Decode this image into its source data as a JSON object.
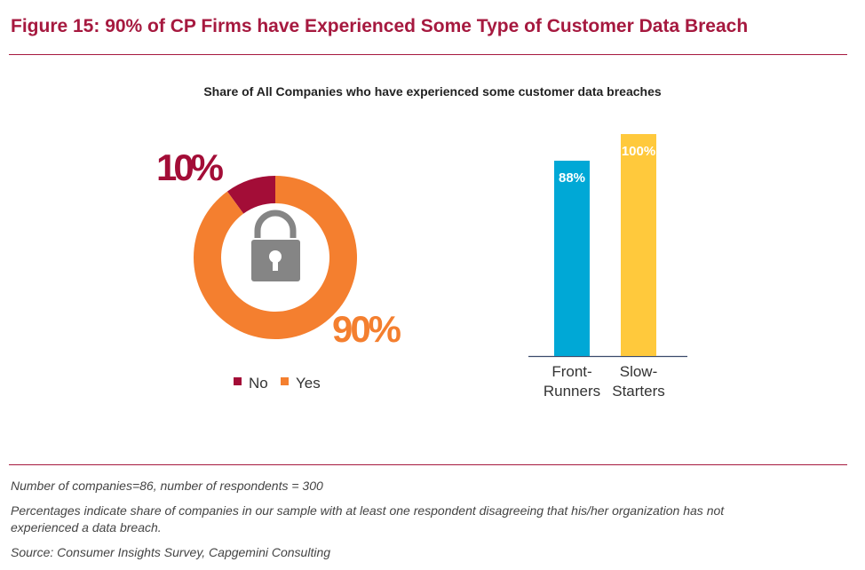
{
  "title": "Figure 15: 90% of CP Firms have Experienced Some Type of Customer Data Breach",
  "chart_data": [
    {
      "type": "pie",
      "subtitle": "Share of All Companies who have experienced some customer data breaches",
      "categories": [
        "No",
        "Yes"
      ],
      "values": [
        10,
        90
      ],
      "data_labels": [
        "10%",
        "90%"
      ],
      "colors": [
        "#a30d37",
        "#f47f2f"
      ],
      "donut": true,
      "center_icon": "open-padlock-icon",
      "legend": "bottom",
      "legend_entries": [
        "No",
        "Yes"
      ]
    },
    {
      "type": "bar",
      "categories": [
        [
          "Front-",
          "Runners"
        ],
        [
          "Slow-",
          "Starters"
        ]
      ],
      "values": [
        88,
        100
      ],
      "data_labels": [
        "88%",
        "100%"
      ],
      "colors": [
        "#00a8d6",
        "#ffc93c"
      ],
      "ylim": [
        0,
        100
      ],
      "grid": false
    }
  ],
  "notes": [
    "Number of companies=86, number of respondents = 300",
    "Percentages indicate share of companies in our sample with at least one respondent disagreeing that his/her organization has not",
    "experienced a data breach.",
    "Source: Consumer Insights Survey, Capgemini Consulting"
  ]
}
